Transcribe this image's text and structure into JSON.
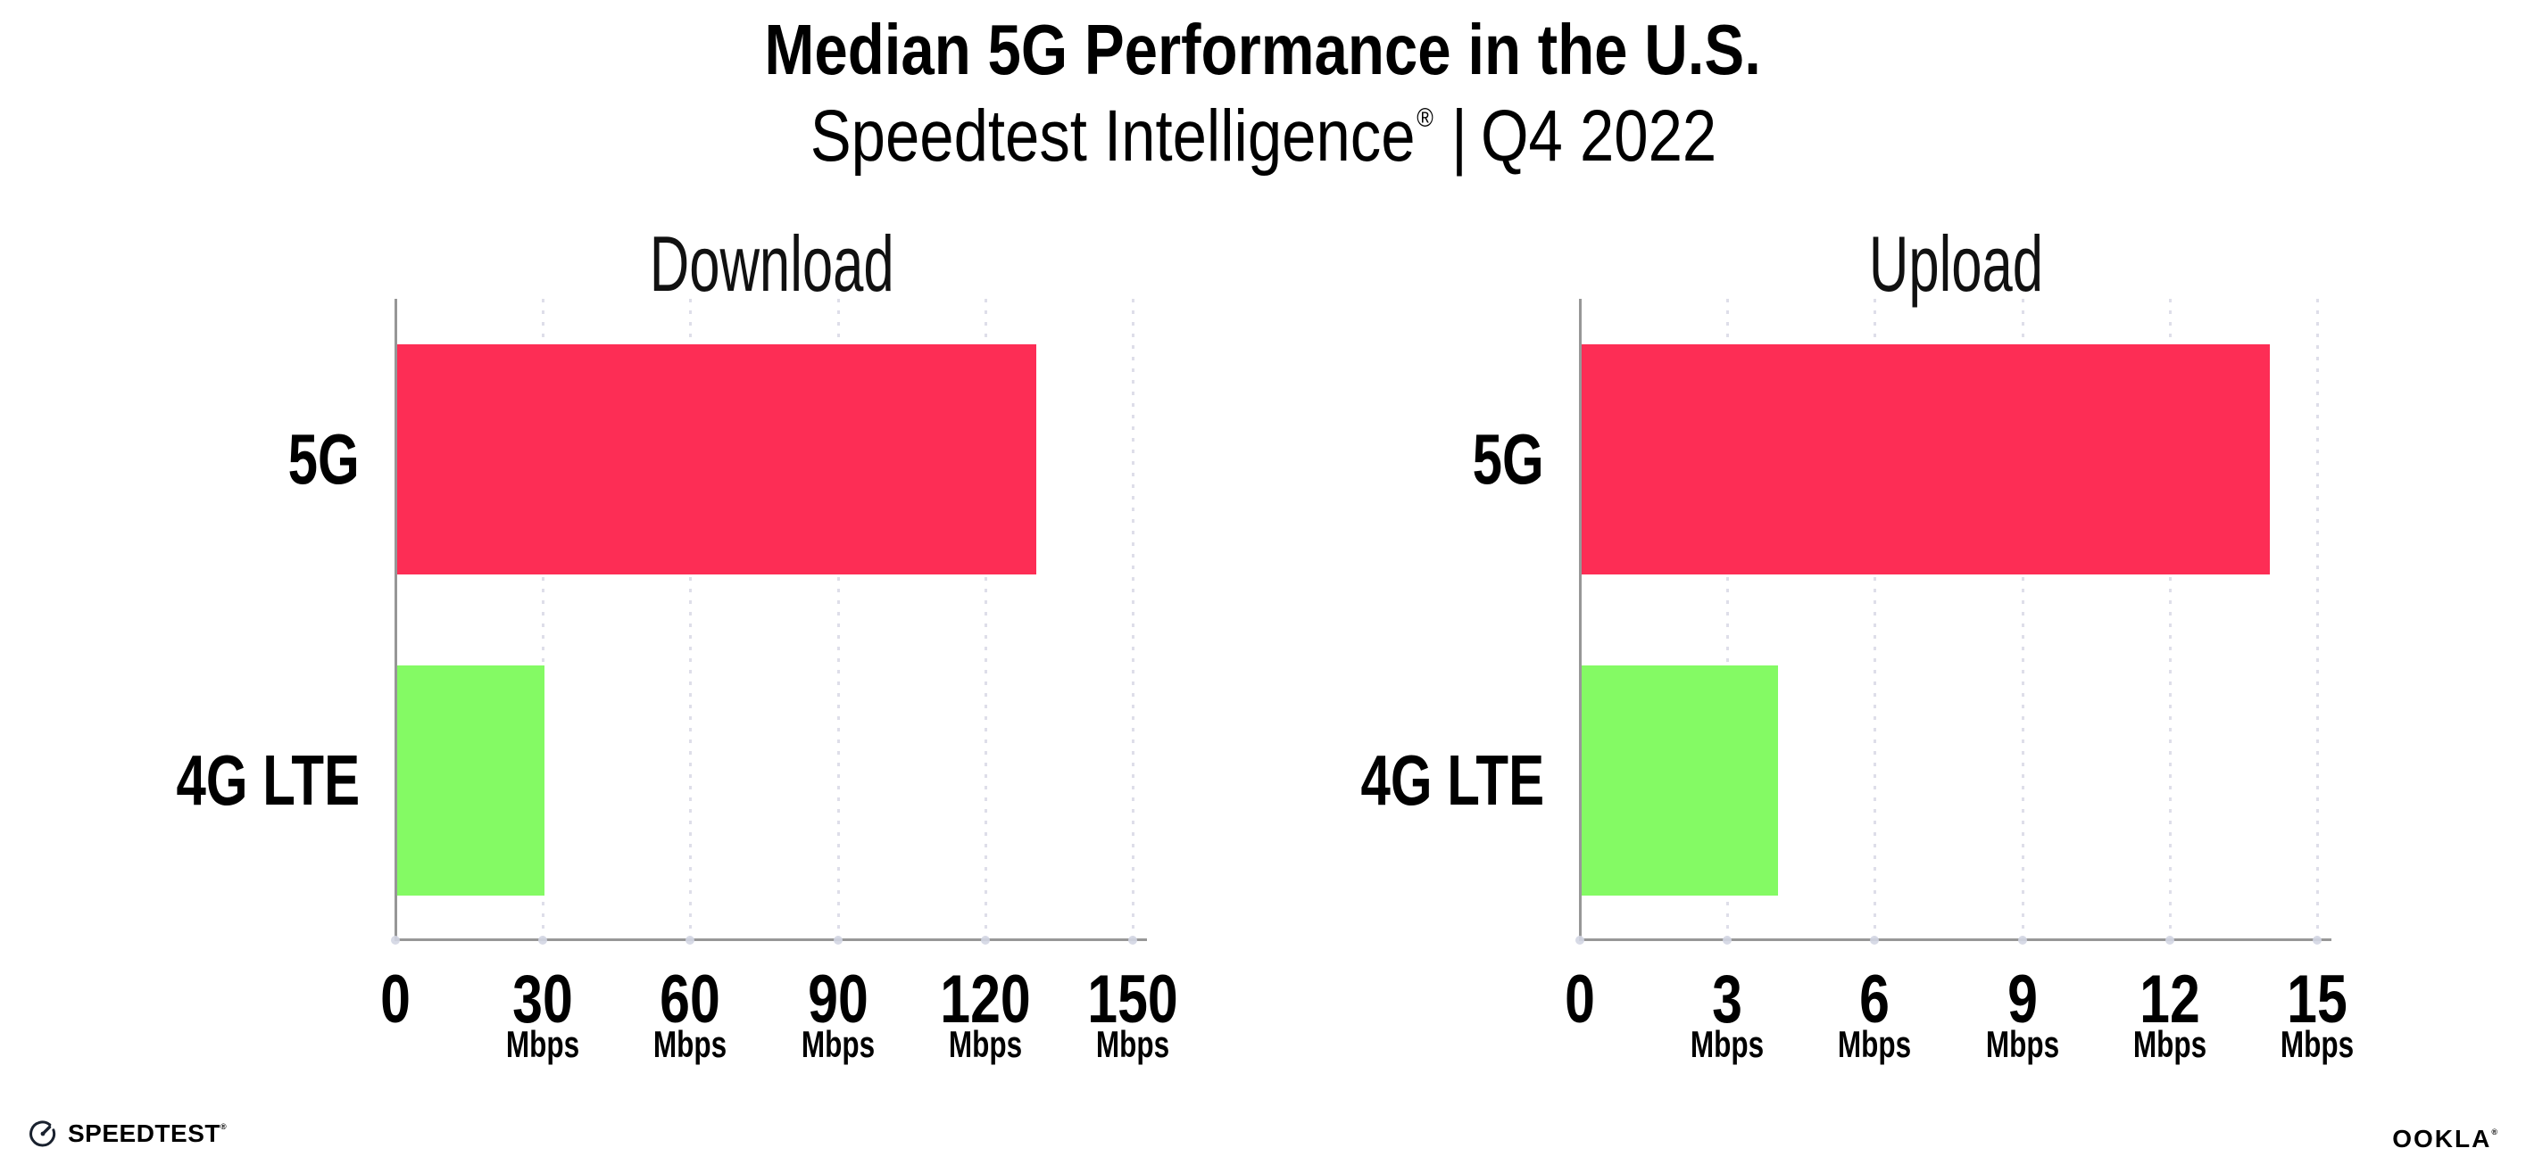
{
  "title": "Median 5G Performance in the U.S.",
  "subtitle": {
    "brand": "Speedtest Intelligence",
    "registered_mark": "®",
    "separator": "|",
    "period": "Q4 2022"
  },
  "colors": {
    "bar_5g": "#fd2d55",
    "bar_4g_lte": "#84fa64",
    "axis": "#979797",
    "gridline": "#dedee9",
    "text": "#000000"
  },
  "chart_data": [
    {
      "type": "bar",
      "orientation": "horizontal",
      "title": "Download",
      "categories": [
        "5G",
        "4G LTE"
      ],
      "values": [
        130,
        30
      ],
      "unit": "Mbps",
      "xlim": [
        0,
        150
      ],
      "xticks": [
        0,
        30,
        60,
        90,
        120,
        150
      ],
      "tick_unit_label": "Mbps",
      "bar_colors": [
        "#fd2d55",
        "#84fa64"
      ],
      "grid": "dotted-vertical-gridlines",
      "legend": "none"
    },
    {
      "type": "bar",
      "orientation": "horizontal",
      "title": "Upload",
      "categories": [
        "5G",
        "4G LTE"
      ],
      "values": [
        14,
        4
      ],
      "unit": "Mbps",
      "xlim": [
        0,
        15
      ],
      "xticks": [
        0,
        3,
        6,
        9,
        12,
        15
      ],
      "tick_unit_label": "Mbps",
      "bar_colors": [
        "#fd2d55",
        "#84fa64"
      ],
      "grid": "dotted-vertical-gridlines",
      "legend": "none"
    }
  ],
  "footer": {
    "speedtest_label": "SPEEDTEST",
    "speedtest_mark": "®",
    "ookla_label": "OOKLA",
    "ookla_mark": "®"
  }
}
